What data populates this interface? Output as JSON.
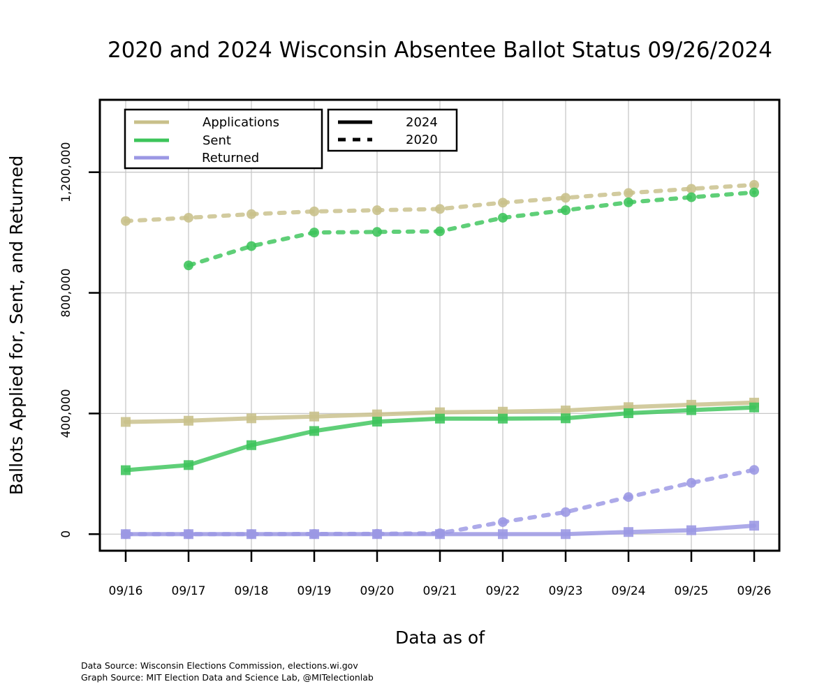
{
  "chart_data": {
    "type": "line",
    "title": "2020 and 2024 Wisconsin Absentee Ballot Status 09/26/2024",
    "xlabel": "Data as of",
    "ylabel": "Ballots Applied for, Sent, and Returned",
    "categories": [
      "09/16",
      "09/17",
      "09/18",
      "09/19",
      "09/20",
      "09/21",
      "09/22",
      "09/23",
      "09/24",
      "09/25",
      "09/26"
    ],
    "ylim": [
      -55000,
      1440000
    ],
    "yticks": [
      0,
      400000,
      800000,
      1200000
    ],
    "ytick_labels": [
      "0",
      "400,000",
      "800,000",
      "1,200,000"
    ],
    "grid": true,
    "legend_placement": "top-left",
    "legend_status": [
      {
        "label": "Applications",
        "color": "#c8c08a"
      },
      {
        "label": "Sent",
        "color": "#3cc45a"
      },
      {
        "label": "Returned",
        "color": "#9b97e4"
      }
    ],
    "legend_year": [
      {
        "label": "2024",
        "style": "solid"
      },
      {
        "label": "2020",
        "style": "dashed"
      }
    ],
    "series": [
      {
        "status": "Applications",
        "year": "2020",
        "style": "dashed",
        "marker": "circle",
        "color": "#c8c08a",
        "values": [
          1038000,
          1049000,
          1061000,
          1070000,
          1074000,
          1078000,
          1099000,
          1115000,
          1131000,
          1145000,
          1158000
        ]
      },
      {
        "status": "Sent",
        "year": "2020",
        "style": "dashed",
        "marker": "circle",
        "color": "#3cc45a",
        "values": [
          null,
          891000,
          955000,
          1000000,
          1002000,
          1004000,
          1049000,
          1074000,
          1100000,
          1117000,
          1133000
        ]
      },
      {
        "status": "Returned",
        "year": "2020",
        "style": "dashed",
        "marker": "circle",
        "color": "#9b97e4",
        "values": [
          0,
          0,
          0,
          500,
          1000,
          3000,
          40000,
          73000,
          123000,
          170000,
          213000
        ]
      },
      {
        "status": "Applications",
        "year": "2024",
        "style": "solid",
        "marker": "square",
        "color": "#c8c08a",
        "values": [
          372000,
          376000,
          384000,
          390000,
          397000,
          404000,
          406000,
          410000,
          421000,
          429000,
          436000
        ]
      },
      {
        "status": "Sent",
        "year": "2024",
        "style": "solid",
        "marker": "square",
        "color": "#3cc45a",
        "values": [
          212000,
          229000,
          295000,
          342000,
          373000,
          383000,
          383000,
          384000,
          401000,
          411000,
          420000
        ]
      },
      {
        "status": "Returned",
        "year": "2024",
        "style": "solid",
        "marker": "square",
        "color": "#9b97e4",
        "values": [
          0,
          0,
          0,
          0,
          0,
          0,
          0,
          0,
          7000,
          13000,
          28000
        ]
      }
    ]
  },
  "sources": {
    "data_source": "Data Source: Wisconsin Elections Commission, elections.wi.gov",
    "graph_source": "Graph Source: MIT Election Data and Science Lab, @MITelectionlab"
  }
}
